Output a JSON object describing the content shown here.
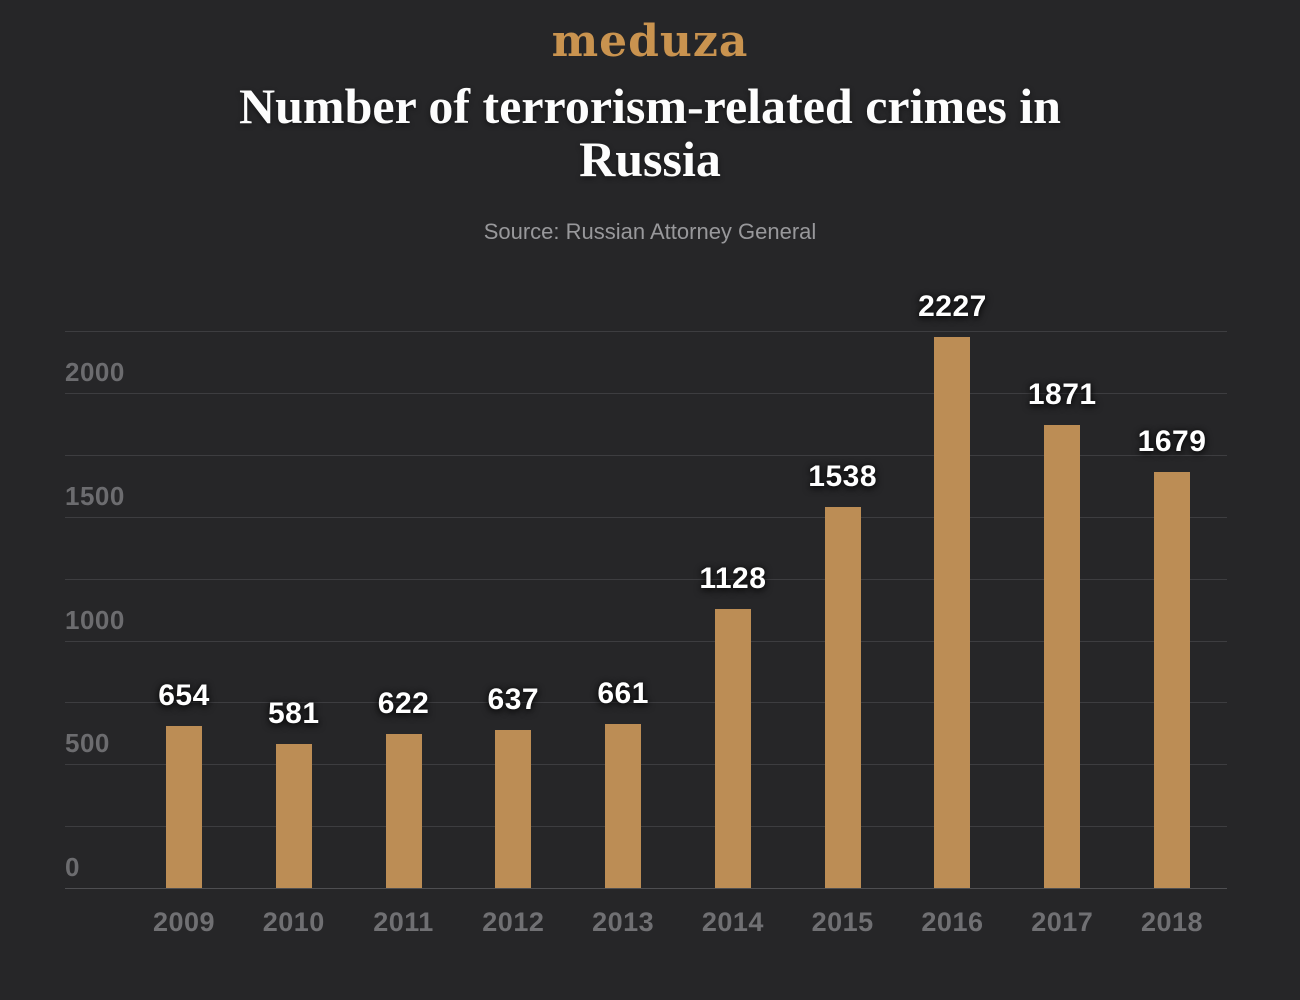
{
  "page": {
    "background_color": "#262628"
  },
  "header": {
    "logo_text": "meduza",
    "logo_color": "#c9934f",
    "title": "Number of terrorism-related crimes in Russia",
    "subtitle": "Source: Russian Attorney General"
  },
  "chart_data": {
    "type": "bar",
    "title": "Number of terrorism-related crimes in Russia",
    "subtitle": "Source: Russian Attorney General",
    "categories": [
      "2009",
      "2010",
      "2011",
      "2012",
      "2013",
      "2014",
      "2015",
      "2016",
      "2017",
      "2018"
    ],
    "values": [
      654,
      581,
      622,
      637,
      661,
      1128,
      1538,
      2227,
      1871,
      1679
    ],
    "xlabel": "",
    "ylabel": "",
    "ylim": [
      0,
      2250
    ],
    "gridline_step": 250,
    "ytick_label_values": [
      0,
      500,
      1000,
      1500,
      2000
    ],
    "grid": true,
    "legend": false,
    "value_labels_shown": true,
    "bar_color": "#bc8d55",
    "value_label_color": "#ffffff",
    "ytick_label_color": "#6c6c6f",
    "xtick_label_color": "#707073",
    "gridline_color": "#3d3d40",
    "zero_line_color": "#4e4e51"
  }
}
